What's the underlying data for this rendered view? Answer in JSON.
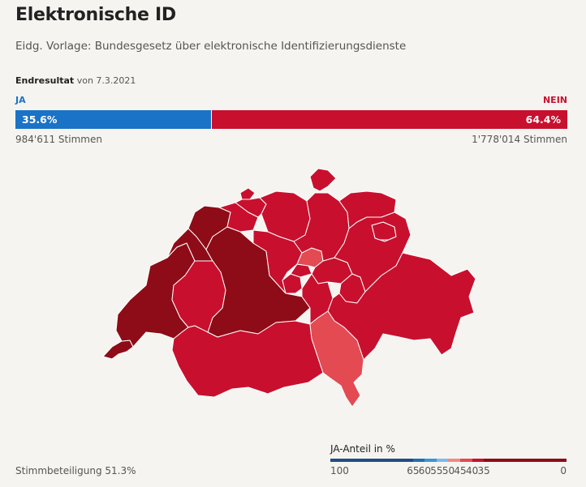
{
  "header": {
    "title": "Elektronische ID",
    "subtitle": "Eidg. Vorlage: Bundesgesetz über elektronische Identifizierungsdienste",
    "result_label": "Endresultat",
    "result_date": "von 7.3.2021"
  },
  "result": {
    "ja_label": "JA",
    "nein_label": "NEIN",
    "ja_percent_text": "35.6%",
    "nein_percent_text": "64.4%",
    "ja_share": 35.6,
    "ja_votes": "984'611 Stimmen",
    "nein_votes": "1'778'014 Stimmen",
    "colors": {
      "ja": "#1a73c7",
      "nein": "#c8102e"
    }
  },
  "map": {
    "cantons": [
      {
        "id": "GE",
        "category": "lt35"
      },
      {
        "id": "VD",
        "category": "lt35"
      },
      {
        "id": "NE",
        "category": "lt35"
      },
      {
        "id": "JU",
        "category": "lt35"
      },
      {
        "id": "BE",
        "category": "lt35"
      },
      {
        "id": "FR",
        "category": "35-40"
      },
      {
        "id": "VS",
        "category": "35-40"
      },
      {
        "id": "SO",
        "category": "35-40"
      },
      {
        "id": "BS",
        "category": "35-40"
      },
      {
        "id": "BL",
        "category": "35-40"
      },
      {
        "id": "AG",
        "category": "35-40"
      },
      {
        "id": "LU",
        "category": "35-40"
      },
      {
        "id": "OW",
        "category": "35-40"
      },
      {
        "id": "NW",
        "category": "35-40"
      },
      {
        "id": "UR",
        "category": "35-40"
      },
      {
        "id": "SZ",
        "category": "35-40"
      },
      {
        "id": "GL",
        "category": "35-40"
      },
      {
        "id": "SH",
        "category": "35-40"
      },
      {
        "id": "ZH",
        "category": "35-40"
      },
      {
        "id": "TG",
        "category": "35-40"
      },
      {
        "id": "SG",
        "category": "35-40"
      },
      {
        "id": "AR",
        "category": "35-40"
      },
      {
        "id": "AI",
        "category": "35-40"
      },
      {
        "id": "GR",
        "category": "35-40"
      },
      {
        "id": "ZG",
        "category": "40-45"
      },
      {
        "id": "TI",
        "category": "40-45"
      }
    ],
    "category_colors": {
      "lt35": "#8e0c17",
      "35-40": "#c8102e",
      "40-45": "#e34a52"
    }
  },
  "footer": {
    "turnout": "Stimmbeteiligung 51.3%"
  },
  "legend": {
    "title": "JA-Anteil in %",
    "segments": [
      {
        "color": "#1f4e82",
        "from": 100,
        "to": 65
      },
      {
        "color": "#1f6fb2",
        "from": 65,
        "to": 60
      },
      {
        "color": "#3d93d9",
        "from": 60,
        "to": 55
      },
      {
        "color": "#7dbbe8",
        "from": 55,
        "to": 50
      },
      {
        "color": "#f08a8a",
        "from": 50,
        "to": 45
      },
      {
        "color": "#e34a52",
        "from": 45,
        "to": 40
      },
      {
        "color": "#c8102e",
        "from": 40,
        "to": 35
      },
      {
        "color": "#8e0c17",
        "from": 35,
        "to": 0
      }
    ],
    "ticks": [
      "100",
      "65",
      "60",
      "55",
      "50",
      "45",
      "40",
      "35",
      "0"
    ]
  }
}
